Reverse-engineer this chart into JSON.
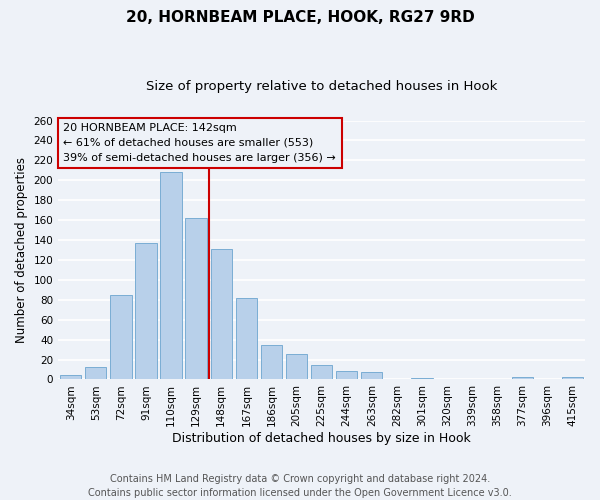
{
  "title": "20, HORNBEAM PLACE, HOOK, RG27 9RD",
  "subtitle": "Size of property relative to detached houses in Hook",
  "xlabel": "Distribution of detached houses by size in Hook",
  "ylabel": "Number of detached properties",
  "bar_labels": [
    "34sqm",
    "53sqm",
    "72sqm",
    "91sqm",
    "110sqm",
    "129sqm",
    "148sqm",
    "167sqm",
    "186sqm",
    "205sqm",
    "225sqm",
    "244sqm",
    "263sqm",
    "282sqm",
    "301sqm",
    "320sqm",
    "339sqm",
    "358sqm",
    "377sqm",
    "396sqm",
    "415sqm"
  ],
  "bar_values": [
    4,
    13,
    85,
    137,
    208,
    162,
    131,
    82,
    35,
    26,
    15,
    8,
    7,
    0,
    1,
    0,
    0,
    0,
    2,
    0,
    2
  ],
  "bar_color": "#b8d0ea",
  "bar_edge_color": "#7aadd4",
  "vline_x": 5.5,
  "vline_color": "#cc0000",
  "box_text_line1": "20 HORNBEAM PLACE: 142sqm",
  "box_text_line2": "← 61% of detached houses are smaller (553)",
  "box_text_line3": "39% of semi-detached houses are larger (356) →",
  "box_edge_color": "#cc0000",
  "ylim": [
    0,
    260
  ],
  "yticks": [
    0,
    20,
    40,
    60,
    80,
    100,
    120,
    140,
    160,
    180,
    200,
    220,
    240,
    260
  ],
  "footnote1": "Contains HM Land Registry data © Crown copyright and database right 2024.",
  "footnote2": "Contains public sector information licensed under the Open Government Licence v3.0.",
  "bg_color": "#eef2f8",
  "grid_color": "#ffffff",
  "title_fontsize": 11,
  "subtitle_fontsize": 9.5,
  "xlabel_fontsize": 9,
  "ylabel_fontsize": 8.5,
  "tick_fontsize": 7.5,
  "footnote_fontsize": 7,
  "annot_fontsize": 8
}
